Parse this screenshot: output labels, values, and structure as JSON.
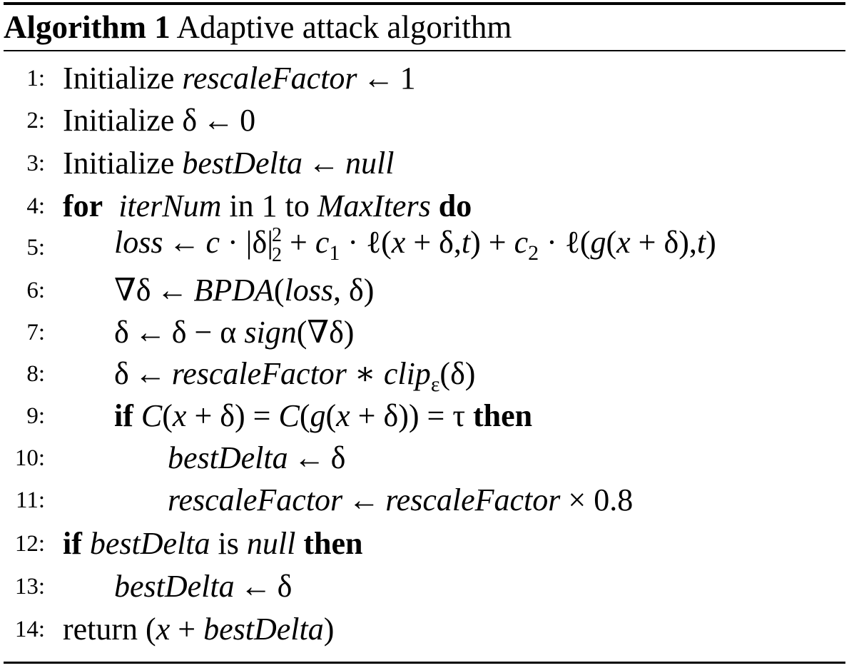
{
  "algorithm": {
    "label": "Algorithm 1",
    "title": "Adaptive attack algorithm"
  },
  "lines": [
    {
      "num": "1:",
      "text": "Initialize rescaleFactor ← 1"
    },
    {
      "num": "2:",
      "text": "Initialize δ ← 0"
    },
    {
      "num": "3:",
      "text": "Initialize bestDelta ← null"
    },
    {
      "num": "4:",
      "text": "for iterNum in 1 to MaxIters do"
    },
    {
      "num": "5:",
      "text": "loss ← c · |δ|_2^2 + c_1 · ℓ(x + δ, t) + c_2 · ℓ(g(x + δ), t)"
    },
    {
      "num": "6:",
      "text": "∇δ ← BPDA(loss, δ)"
    },
    {
      "num": "7:",
      "text": "δ ← δ − α sign(∇δ)"
    },
    {
      "num": "8:",
      "text": "δ ← rescaleFactor ∗ clip_ε(δ)"
    },
    {
      "num": "9:",
      "text": "if C(x + δ) = C(g(x + δ)) = τ then"
    },
    {
      "num": "10:",
      "text": "bestDelta ← δ"
    },
    {
      "num": "11:",
      "text": "rescaleFactor ← rescaleFactor × 0.8"
    },
    {
      "num": "12:",
      "text": "if bestDelta is null then"
    },
    {
      "num": "13:",
      "text": "bestDelta ← δ"
    },
    {
      "num": "14:",
      "text": "return (x + bestDelta)"
    }
  ]
}
